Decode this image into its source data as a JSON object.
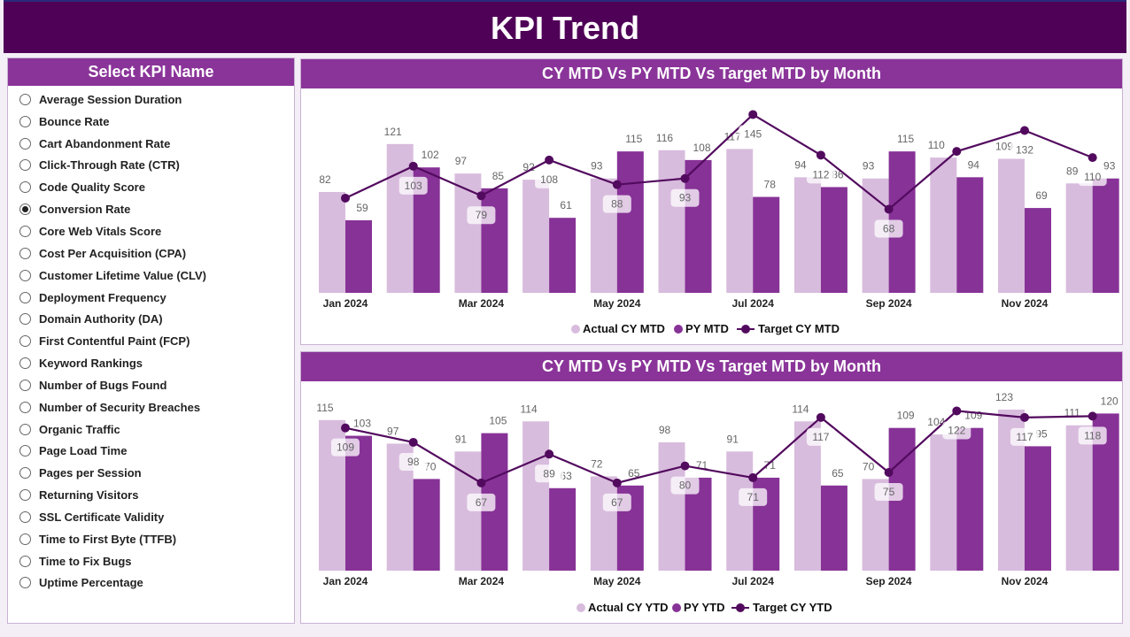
{
  "header": {
    "title": "KPI Trend"
  },
  "sidebar": {
    "title": "Select KPI Name",
    "selected": "Conversion Rate",
    "items": [
      "Average Session Duration",
      "Bounce Rate",
      "Cart Abandonment Rate",
      "Click-Through Rate (CTR)",
      "Code Quality Score",
      "Conversion Rate",
      "Core Web Vitals Score",
      "Cost Per Acquisition (CPA)",
      "Customer Lifetime Value (CLV)",
      "Deployment Frequency",
      "Domain Authority (DA)",
      "First Contentful Paint (FCP)",
      "Keyword Rankings",
      "Number of Bugs Found",
      "Number of Security Breaches",
      "Organic Traffic",
      "Page Load Time",
      "Pages per Session",
      "Returning Visitors",
      "SSL Certificate Validity",
      "Time to First Byte (TTFB)",
      "Time to Fix Bugs",
      "Uptime Percentage"
    ]
  },
  "colors": {
    "header": "#4f0057",
    "accent": "#8a3499",
    "actual": "#d8bcdd",
    "py": "#873297",
    "target": "#520a5e"
  },
  "chart_data": [
    {
      "type": "bar",
      "title": "CY MTD Vs PY MTD Vs Target MTD by Month",
      "x_tick_labels": [
        "Jan 2024",
        "Mar 2024",
        "May 2024",
        "Jul 2024",
        "Sep 2024",
        "Nov 2024"
      ],
      "legend_position": "bottom",
      "grid": false,
      "series": [
        {
          "name": "Actual CY MTD",
          "kind": "bar",
          "values": [
            82,
            121,
            97,
            92,
            93,
            116,
            117,
            94,
            93,
            110,
            109,
            89
          ]
        },
        {
          "name": "PY MTD",
          "kind": "bar",
          "values": [
            59,
            102,
            85,
            61,
            115,
            108,
            78,
            86,
            115,
            94,
            69,
            93
          ]
        },
        {
          "name": "Target CY MTD",
          "kind": "line",
          "values": [
            77,
            103,
            79,
            108,
            88,
            93,
            145,
            112,
            68,
            115,
            132,
            110
          ],
          "labels": [
            null,
            "103",
            "79",
            "108",
            "88",
            "93",
            "145",
            "112",
            "68",
            null,
            "132",
            "110"
          ]
        }
      ]
    },
    {
      "type": "bar",
      "title": "CY MTD Vs PY MTD Vs Target MTD by Month",
      "x_tick_labels": [
        "Jan 2024",
        "Mar 2024",
        "May 2024",
        "Jul 2024",
        "Sep 2024",
        "Nov 2024"
      ],
      "legend_position": "bottom",
      "grid": false,
      "series": [
        {
          "name": "Actual CY YTD",
          "kind": "bar",
          "values": [
            115,
            97,
            91,
            114,
            72,
            98,
            91,
            114,
            70,
            104,
            123,
            111
          ]
        },
        {
          "name": "PY YTD",
          "kind": "bar",
          "values": [
            103,
            70,
            105,
            63,
            65,
            71,
            71,
            65,
            109,
            109,
            95,
            120
          ]
        },
        {
          "name": "Target CY YTD",
          "kind": "line",
          "values": [
            109,
            98,
            67,
            89,
            67,
            80,
            71,
            117,
            75,
            122,
            117,
            118
          ]
        }
      ]
    }
  ]
}
